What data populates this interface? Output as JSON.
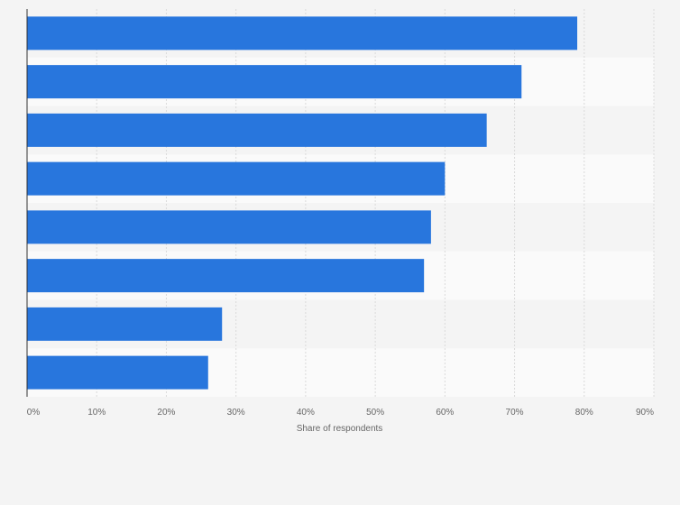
{
  "chart_data": {
    "type": "bar",
    "orientation": "horizontal",
    "title": "",
    "xlabel": "Share of respondents",
    "ylabel": "",
    "categories": [
      "",
      "",
      "",
      "",
      "",
      "",
      "",
      ""
    ],
    "values": [
      79,
      71,
      66,
      60,
      58,
      57,
      28,
      26
    ],
    "xlim": [
      0,
      90
    ],
    "x_ticks": [
      "0%",
      "10%",
      "20%",
      "30%",
      "40%",
      "50%",
      "60%",
      "70%",
      "80%",
      "90%"
    ],
    "bar_color": "#2876dd",
    "grid": true,
    "legend": "none"
  }
}
